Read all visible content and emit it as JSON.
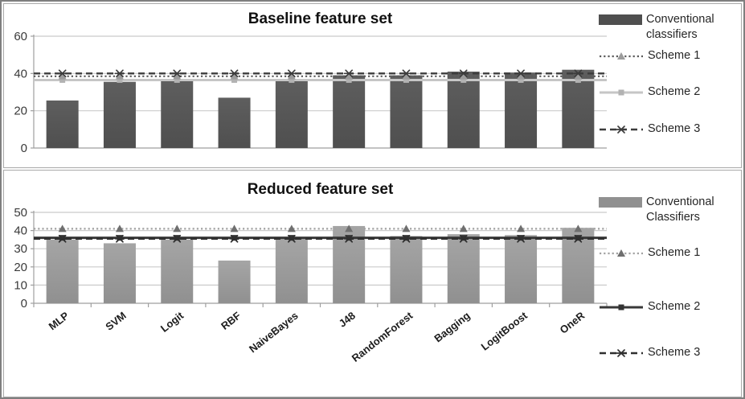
{
  "figure": {
    "background": "#ffffff",
    "border_color": "#7f7f7f"
  },
  "chart_data": [
    {
      "id": "baseline",
      "type": "bar",
      "title": "Baseline feature set",
      "categories": [
        "MLP",
        "SVM",
        "Logit",
        "RBF",
        "NaiveBayes",
        "J48",
        "RandomForest",
        "Bagging",
        "LogitBoost",
        "OneR"
      ],
      "x_labels_visible": false,
      "ylim": [
        0,
        60
      ],
      "y_ticks": [
        0,
        20,
        40,
        60
      ],
      "grid": true,
      "legend_position": "right",
      "bar_series": {
        "name": "Conventional classifiers",
        "color": "#4f4f4f",
        "color2": "#5e5e5e",
        "values": [
          25.5,
          35.5,
          36,
          27,
          36,
          39,
          39,
          41,
          40.5,
          42
        ]
      },
      "line_series": [
        {
          "name": "Scheme 1",
          "style": "dotted",
          "marker": "triangle",
          "line_color": "#5a5a5a",
          "marker_color": "#9c9c9c",
          "values": [
            38.5,
            38.5,
            38.5,
            38.5,
            38.5,
            38.5,
            38.5,
            38.5,
            38.5,
            38.5
          ]
        },
        {
          "name": "Scheme 2",
          "style": "solid",
          "marker": "square",
          "line_color": "#c6c6c6",
          "marker_color": "#b2b2b2",
          "values": [
            36.5,
            36.5,
            36.5,
            36.5,
            36.5,
            36.5,
            36.5,
            36.5,
            36.5,
            36.5
          ]
        },
        {
          "name": "Scheme 3",
          "style": "dashed",
          "marker": "x",
          "line_color": "#3c3c3c",
          "marker_color": "#3c3c3c",
          "values": [
            40,
            40,
            40,
            40,
            40,
            40,
            40,
            40,
            40,
            40
          ]
        }
      ]
    },
    {
      "id": "reduced",
      "type": "bar",
      "title": "Reduced feature set",
      "categories": [
        "MLP",
        "SVM",
        "Logit",
        "RBF",
        "NaiveBayes",
        "J48",
        "RandomForest",
        "Bagging",
        "LogitBoost",
        "OneR"
      ],
      "x_labels_visible": true,
      "ylim": [
        0,
        50
      ],
      "y_ticks": [
        0,
        10,
        20,
        30,
        40,
        50
      ],
      "grid": true,
      "legend_position": "right",
      "bar_series": {
        "name": "Conventional Classifiers",
        "color": "#909090",
        "color2": "#a5a5a5",
        "values": [
          35,
          33,
          35,
          23.5,
          35.5,
          42.5,
          37,
          38,
          37.5,
          41.5
        ]
      },
      "line_series": [
        {
          "name": "Scheme 1",
          "style": "dotted",
          "marker": "triangle",
          "line_color": "#a2a2a2",
          "marker_color": "#6f6f6f",
          "values": [
            41,
            41,
            41,
            41,
            41,
            41,
            41,
            41,
            41,
            41
          ]
        },
        {
          "name": "Scheme 2",
          "style": "solid",
          "marker": "square",
          "line_color": "#383838",
          "marker_color": "#333333",
          "values": [
            36,
            36,
            36,
            36,
            36,
            36,
            36,
            36,
            36,
            36
          ]
        },
        {
          "name": "Scheme 3",
          "style": "dashed",
          "marker": "x",
          "line_color": "#2f2f2f",
          "marker_color": "#2f2f2f",
          "values": [
            35.5,
            35.5,
            35.5,
            35.5,
            35.5,
            35.5,
            35.5,
            35.5,
            35.5,
            35.5
          ]
        }
      ]
    }
  ]
}
